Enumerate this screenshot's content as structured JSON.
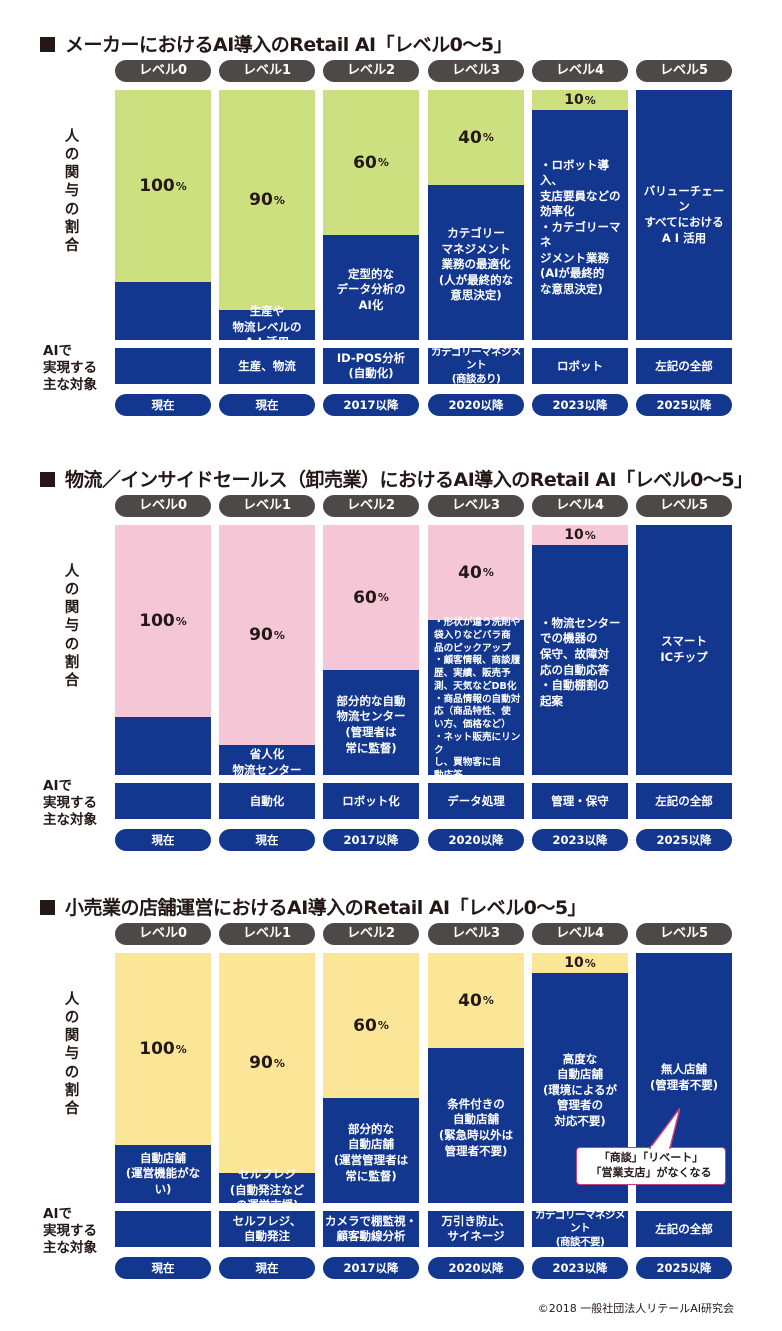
{
  "labels": {
    "human_share": "人の関与の割合",
    "ai_target": "AIで\n実現する\n主な対象"
  },
  "colors": {
    "ai_blue": "#13378f",
    "level_gray": "#4d4948",
    "green": "#cde07f",
    "pink": "#f5c6d5",
    "yellow": "#fbe698"
  },
  "sections": [
    {
      "title": "メーカーにおけるAI導入のRetail AI「レベル0〜5」",
      "human_color": "#cde07f",
      "columns": [
        {
          "level": "レベル0",
          "human_pct": 100,
          "human_label": "100",
          "ai_text": "",
          "target": "",
          "year": "現在"
        },
        {
          "level": "レベル1",
          "human_pct": 90,
          "human_label": "90",
          "ai_text": "生産や\n物流レベルの\nA I 活用",
          "target": "生産、物流",
          "year": "現在"
        },
        {
          "level": "レベル2",
          "human_pct": 60,
          "human_label": "60",
          "ai_text": "定型的な\nデータ分析の\nAI化",
          "target": "ID-POS分析\n(自動化)",
          "year": "2017以降"
        },
        {
          "level": "レベル3",
          "human_pct": 40,
          "human_label": "40",
          "ai_text": "カテゴリー\nマネジメント\n業務の最適化\n(人が最終的な\n意思決定)",
          "target": "カテゴリーマネジメント\n(商談あり)",
          "year": "2020以降"
        },
        {
          "level": "レベル4",
          "human_pct": 10,
          "human_label": "10",
          "ai_text": "・ロボット導入、\n  支店要員などの\n  効率化\n・カテゴリーマネ\n  ジメント業務\n  (AIが最終的\n  な意思決定)",
          "target": "ロボット",
          "year": "2023以降"
        },
        {
          "level": "レベル5",
          "human_pct": 0,
          "human_label": "",
          "ai_text": "バリューチェーン\nすべてにおける\nA I 活用",
          "target": "左記の全部",
          "year": "2025以降"
        }
      ]
    },
    {
      "title": "物流／インサイドセールス（卸売業）におけるAI導入のRetail AI「レベル0〜5」",
      "human_color": "#f5c6d5",
      "columns": [
        {
          "level": "レベル0",
          "human_pct": 100,
          "human_label": "100",
          "ai_text": "",
          "target": "",
          "year": "現在"
        },
        {
          "level": "レベル1",
          "human_pct": 90,
          "human_label": "90",
          "ai_text": "省人化\n物流センター",
          "target": "自動化",
          "year": "現在"
        },
        {
          "level": "レベル2",
          "human_pct": 60,
          "human_label": "60",
          "ai_text": "部分的な自動\n物流センター\n(管理者は\n常に監督)",
          "target": "ロボット化",
          "year": "2017以降"
        },
        {
          "level": "レベル3",
          "human_pct": 40,
          "human_label": "40",
          "ai_text": "・形状が違う洗剤や\n  袋入りなどバラ商\n  品のピックアップ\n・顧客情報、商談履\n  歴、実績、販売予\n  測、天気などDB化\n・商品情報の自動対\n  応（商品特性、使\n  い方、価格など）\n・ネット販売にリンク\n  し、買物客に自\n  動応答",
          "target": "データ処理",
          "year": "2020以降"
        },
        {
          "level": "レベル4",
          "human_pct": 10,
          "human_label": "10",
          "ai_text": "・物流センター\n  での機器の\n  保守、故障対\n  応の自動応答\n・自動棚割の\n  起案",
          "target": "管理・保守",
          "year": "2023以降"
        },
        {
          "level": "レベル5",
          "human_pct": 0,
          "human_label": "",
          "ai_text": "スマート\nICチップ",
          "target": "左記の全部",
          "year": "2025以降"
        }
      ]
    },
    {
      "title": "小売業の店舗運営におけるAI導入のRetail AI「レベル0〜5」",
      "human_color": "#fbe698",
      "columns": [
        {
          "level": "レベル0",
          "human_pct": 100,
          "human_label": "100",
          "ai_text": "自動店舗\n(運営機能がない)",
          "target": "",
          "year": "現在"
        },
        {
          "level": "レベル1",
          "human_pct": 90,
          "human_label": "90",
          "ai_text": "セルフレジ\n(自動発注など\nの運営支援)",
          "target": "セルフレジ、\n自動発注",
          "year": "現在"
        },
        {
          "level": "レベル2",
          "human_pct": 60,
          "human_label": "60",
          "ai_text": "部分的な\n自動店舗\n(運営管理者は\n常に監督)",
          "target": "カメラで棚監視・\n顧客動線分析",
          "year": "2017以降"
        },
        {
          "level": "レベル3",
          "human_pct": 40,
          "human_label": "40",
          "ai_text": "条件付きの\n自動店舗\n(緊急時以外は\n管理者不要)",
          "target": "万引き防止、\nサイネージ",
          "year": "2020以降"
        },
        {
          "level": "レベル4",
          "human_pct": 10,
          "human_label": "10",
          "ai_text": "高度な\n自動店舗\n(環境によるが\n管理者の\n対応不要)",
          "target": "カテゴリーマネジメント\n(商談不要)",
          "year": "2023以降"
        },
        {
          "level": "レベル5",
          "human_pct": 0,
          "human_label": "",
          "ai_text": "無人店舗\n(管理者不要)",
          "target": "左記の全部",
          "year": "2025以降"
        }
      ]
    }
  ],
  "callout": {
    "line1": "「商談」「リベート」",
    "line2": "「営業支店」がなくなる"
  },
  "percent_sign": "%",
  "copyright": "©2018 一般社団法人リテールAI研究会",
  "chart_data": [
    {
      "type": "bar",
      "title": "メーカーにおけるAI導入のRetail AI「レベル0〜5」",
      "categories": [
        "レベル0",
        "レベル1",
        "レベル2",
        "レベル3",
        "レベル4",
        "レベル5"
      ],
      "series": [
        {
          "name": "人の関与の割合",
          "values": [
            100,
            90,
            60,
            40,
            10,
            0
          ]
        }
      ],
      "ylabel": "人の関与の割合",
      "ylim": [
        0,
        100
      ]
    },
    {
      "type": "bar",
      "title": "物流／インサイドセールス（卸売業）におけるAI導入のRetail AI「レベル0〜5」",
      "categories": [
        "レベル0",
        "レベル1",
        "レベル2",
        "レベル3",
        "レベル4",
        "レベル5"
      ],
      "series": [
        {
          "name": "人の関与の割合",
          "values": [
            100,
            90,
            60,
            40,
            10,
            0
          ]
        }
      ],
      "ylabel": "人の関与の割合",
      "ylim": [
        0,
        100
      ]
    },
    {
      "type": "bar",
      "title": "小売業の店舗運営におけるAI導入のRetail AI「レベル0〜5」",
      "categories": [
        "レベル0",
        "レベル1",
        "レベル2",
        "レベル3",
        "レベル4",
        "レベル5"
      ],
      "series": [
        {
          "name": "人の関与の割合",
          "values": [
            100,
            90,
            60,
            40,
            10,
            0
          ]
        }
      ],
      "ylabel": "人の関与の割合",
      "ylim": [
        0,
        100
      ]
    }
  ]
}
